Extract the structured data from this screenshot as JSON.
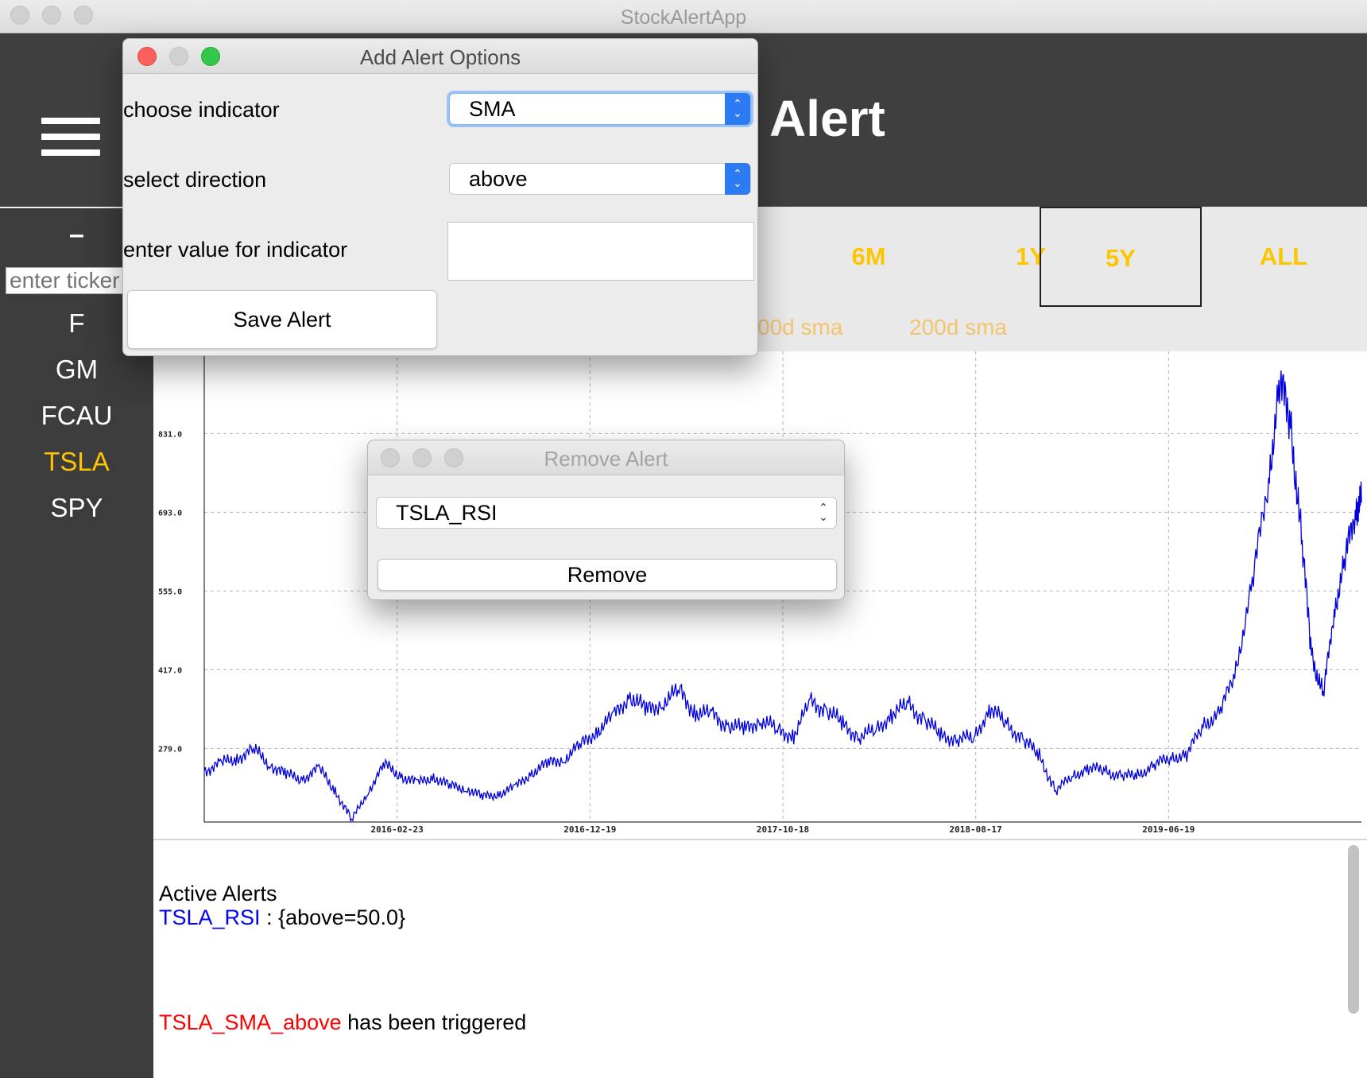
{
  "window": {
    "title": "StockAlertApp"
  },
  "header": {
    "menu_icon": "hamburger-icon",
    "title_visible": "Alert"
  },
  "sidebar": {
    "collapse_label": "–",
    "ticker_input_placeholder": "enter ticker",
    "tickers": [
      "F",
      "GM",
      "FCAU",
      "TSLA",
      "SPY"
    ],
    "selected_ticker": "TSLA"
  },
  "range_bar": {
    "buttons": [
      "6M",
      "1Y",
      "5Y",
      "ALL"
    ],
    "selected": "5Y",
    "indicator_toggles": [
      "00d sma",
      "200d sma"
    ]
  },
  "add_alert_dialog": {
    "title": "Add Alert Options",
    "indicator_label": "choose indicator",
    "indicator_value": "SMA",
    "direction_label": "select direction",
    "direction_value": "above",
    "value_label": "enter value for indicator",
    "value_input": "",
    "save_button": "Save Alert"
  },
  "remove_alert_dialog": {
    "title": "Remove Alert",
    "selected_alert": "TSLA_RSI",
    "remove_button": "Remove"
  },
  "alerts_panel": {
    "heading": "Active Alerts",
    "active": [
      {
        "name": "TSLA_RSI",
        "detail": " : {above=50.0}"
      }
    ],
    "triggered": [
      {
        "name": "TSLA_SMA_above",
        "message": " has been triggered"
      }
    ]
  },
  "colors": {
    "accent_yellow": "#fdc600",
    "sma_label": "#f3c46d",
    "price_line": "#0000dd",
    "active_alert": "#0000ff",
    "triggered_alert": "#ff0000"
  },
  "chart_data": {
    "type": "line",
    "y_ticks": [
      "831.0",
      "693.0",
      "555.0",
      "417.0",
      "279.0"
    ],
    "x_ticks": [
      "2016-02-23",
      "2016-12-19",
      "2017-10-18",
      "2018-08-17",
      "2019-06-19"
    ],
    "ylim": [
      150,
      975
    ],
    "grid": true,
    "series": [
      {
        "values": [
          [
            0,
            240
          ],
          [
            3,
            252
          ],
          [
            6,
            262
          ],
          [
            9,
            277
          ],
          [
            12,
            252
          ],
          [
            15,
            232
          ],
          [
            18,
            226
          ],
          [
            21,
            243
          ],
          [
            24,
            206
          ],
          [
            27,
            152
          ],
          [
            30,
            204
          ],
          [
            33,
            250
          ],
          [
            36,
            232
          ],
          [
            39,
            217
          ],
          [
            42,
            230
          ],
          [
            45,
            212
          ],
          [
            48,
            210
          ],
          [
            51,
            193
          ],
          [
            54,
            200
          ],
          [
            57,
            210
          ],
          [
            60,
            237
          ],
          [
            63,
            252
          ],
          [
            66,
            262
          ],
          [
            69,
            285
          ],
          [
            72,
            310
          ],
          [
            75,
            335
          ],
          [
            78,
            372
          ],
          [
            81,
            345
          ],
          [
            84,
            360
          ],
          [
            87,
            380
          ],
          [
            90,
            342
          ],
          [
            93,
            337
          ],
          [
            96,
            320
          ],
          [
            99,
            312
          ],
          [
            102,
            330
          ],
          [
            105,
            310
          ],
          [
            108,
            302
          ],
          [
            111,
            360
          ],
          [
            114,
            348
          ],
          [
            117,
            320
          ],
          [
            120,
            300
          ],
          [
            123,
            310
          ],
          [
            126,
            340
          ],
          [
            129,
            355
          ],
          [
            132,
            330
          ],
          [
            135,
            300
          ],
          [
            138,
            296
          ],
          [
            141,
            297
          ],
          [
            144,
            350
          ],
          [
            147,
            320
          ],
          [
            150,
            295
          ],
          [
            153,
            265
          ],
          [
            156,
            205
          ],
          [
            159,
            230
          ],
          [
            162,
            245
          ],
          [
            165,
            240
          ],
          [
            168,
            230
          ],
          [
            171,
            232
          ],
          [
            174,
            250
          ],
          [
            177,
            263
          ],
          [
            180,
            268
          ],
          [
            183,
            320
          ],
          [
            186,
            340
          ],
          [
            189,
            415
          ],
          [
            192,
            570
          ],
          [
            195,
            750
          ],
          [
            197,
            920
          ],
          [
            199,
            858
          ],
          [
            201,
            640
          ],
          [
            203,
            440
          ],
          [
            205,
            370
          ],
          [
            207,
            520
          ],
          [
            209,
            610
          ],
          [
            211,
            700
          ],
          [
            212,
            710
          ]
        ]
      }
    ]
  }
}
